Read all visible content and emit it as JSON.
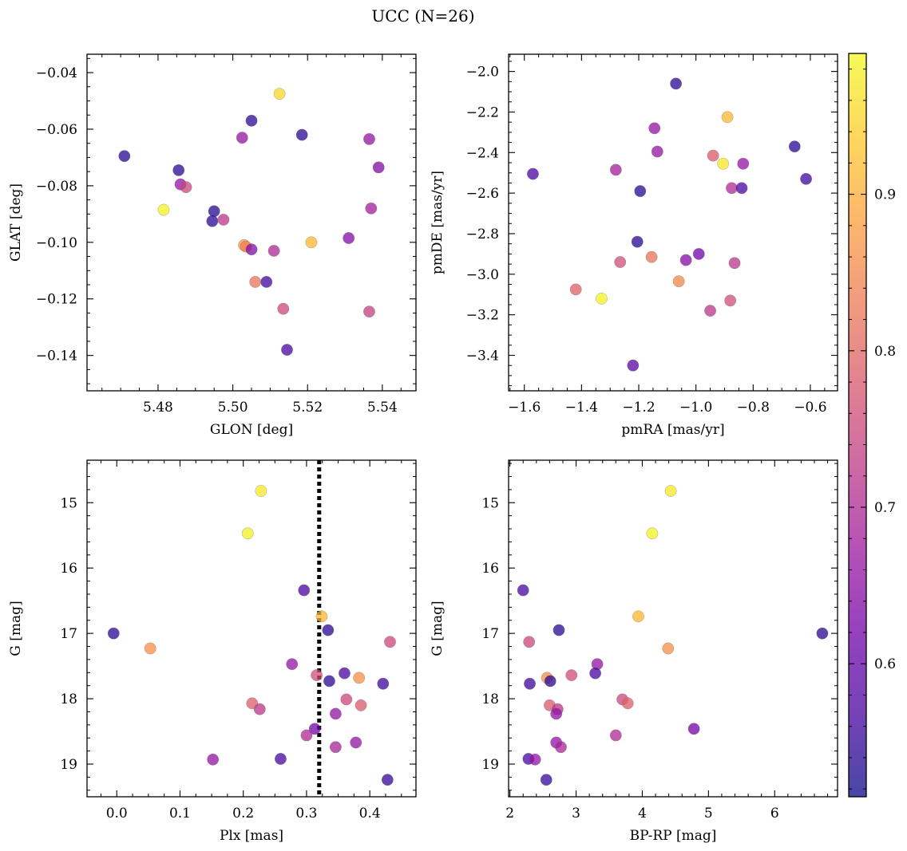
{
  "figure": {
    "title": "UCC (N=26)"
  },
  "colorbar": {
    "vmin": 0.515,
    "vmax": 0.99,
    "ticks": [
      0.6,
      0.7,
      0.8,
      0.9
    ],
    "tick_labels": [
      "0.6",
      "0.7",
      "0.8",
      "0.9"
    ],
    "colormap": "plasma",
    "colors": [
      "#0d0887",
      "#46039f",
      "#7201a8",
      "#9c179e",
      "#bd3786",
      "#d8576b",
      "#ed7953",
      "#fb9f3a",
      "#fdca26",
      "#f0f921"
    ],
    "alpha": 0.75
  },
  "dashed_line": {
    "panel": 2,
    "x": 0.32,
    "style": "dotted",
    "color": "#000000"
  },
  "chart_data": [
    {
      "type": "scatter",
      "xlabel": "GLON [deg]",
      "ylabel": "GLAT [deg]",
      "xlim": [
        5.461,
        5.549
      ],
      "ylim": [
        -0.1525,
        -0.0335
      ],
      "xticks": [
        5.48,
        5.5,
        5.52,
        5.54
      ],
      "xtick_labels": [
        "5.48",
        "5.50",
        "5.52",
        "5.54"
      ],
      "yticks": [
        -0.04,
        -0.06,
        -0.08,
        -0.1,
        -0.12,
        -0.14
      ],
      "ytick_labels": [
        "−0.04",
        "−0.06",
        "−0.08",
        "−0.10",
        "−0.12",
        "−0.14"
      ],
      "points": [
        {
          "x": 5.471,
          "y": -0.0695,
          "c": 0.54
        },
        {
          "x": 5.4855,
          "y": -0.0745,
          "c": 0.54
        },
        {
          "x": 5.486,
          "y": -0.0795,
          "c": 0.66
        },
        {
          "x": 5.4875,
          "y": -0.0805,
          "c": 0.75
        },
        {
          "x": 5.4815,
          "y": -0.0885,
          "c": 0.98
        },
        {
          "x": 5.4945,
          "y": -0.0925,
          "c": 0.54
        },
        {
          "x": 5.495,
          "y": -0.089,
          "c": 0.54
        },
        {
          "x": 5.4975,
          "y": -0.092,
          "c": 0.72
        },
        {
          "x": 5.5025,
          "y": -0.063,
          "c": 0.66
        },
        {
          "x": 5.505,
          "y": -0.057,
          "c": 0.54
        },
        {
          "x": 5.5125,
          "y": -0.0475,
          "c": 0.95
        },
        {
          "x": 5.5185,
          "y": -0.062,
          "c": 0.54
        },
        {
          "x": 5.503,
          "y": -0.101,
          "c": 0.87
        },
        {
          "x": 5.5035,
          "y": -0.1015,
          "c": 0.84
        },
        {
          "x": 5.505,
          "y": -0.1025,
          "c": 0.64
        },
        {
          "x": 5.506,
          "y": -0.114,
          "c": 0.82
        },
        {
          "x": 5.509,
          "y": -0.114,
          "c": 0.56
        },
        {
          "x": 5.511,
          "y": -0.103,
          "c": 0.7
        },
        {
          "x": 5.5135,
          "y": -0.1235,
          "c": 0.75
        },
        {
          "x": 5.5145,
          "y": -0.138,
          "c": 0.57
        },
        {
          "x": 5.521,
          "y": -0.1,
          "c": 0.91
        },
        {
          "x": 5.531,
          "y": -0.0985,
          "c": 0.64
        },
        {
          "x": 5.5365,
          "y": -0.0635,
          "c": 0.66
        },
        {
          "x": 5.537,
          "y": -0.088,
          "c": 0.68
        },
        {
          "x": 5.539,
          "y": -0.0735,
          "c": 0.64
        },
        {
          "x": 5.5365,
          "y": -0.1245,
          "c": 0.74
        }
      ]
    },
    {
      "type": "scatter",
      "xlabel": "pmRA [mas/yr]",
      "ylabel": "pmDE [mas/yr]",
      "xlim": [
        -1.655,
        -0.505
      ],
      "ylim": [
        -3.575,
        -1.915
      ],
      "xticks": [
        -1.6,
        -1.4,
        -1.2,
        -1.0,
        -0.8,
        -0.6
      ],
      "xtick_labels": [
        "−1.6",
        "−1.4",
        "−1.2",
        "−1.0",
        "−0.8",
        "−0.6"
      ],
      "yticks": [
        -2.0,
        -2.2,
        -2.4,
        -2.6,
        -2.8,
        -3.0,
        -3.2,
        -3.4
      ],
      "ytick_labels": [
        "−2.0",
        "−2.2",
        "−2.4",
        "−2.6",
        "−2.8",
        "−3.0",
        "−3.2",
        "−3.4"
      ],
      "points": [
        {
          "x": -1.57,
          "y": -2.505,
          "c": 0.57
        },
        {
          "x": -1.07,
          "y": -2.06,
          "c": 0.54
        },
        {
          "x": -1.145,
          "y": -2.28,
          "c": 0.66
        },
        {
          "x": -1.135,
          "y": -2.395,
          "c": 0.66
        },
        {
          "x": -1.28,
          "y": -2.485,
          "c": 0.68
        },
        {
          "x": -1.195,
          "y": -2.59,
          "c": 0.54
        },
        {
          "x": -0.89,
          "y": -2.225,
          "c": 0.91
        },
        {
          "x": -0.94,
          "y": -2.415,
          "c": 0.78
        },
        {
          "x": -0.905,
          "y": -2.455,
          "c": 0.97
        },
        {
          "x": -0.655,
          "y": -2.37,
          "c": 0.54
        },
        {
          "x": -0.835,
          "y": -2.455,
          "c": 0.66
        },
        {
          "x": -0.875,
          "y": -2.575,
          "c": 0.7
        },
        {
          "x": -0.84,
          "y": -2.575,
          "c": 0.57
        },
        {
          "x": -0.615,
          "y": -2.53,
          "c": 0.56
        },
        {
          "x": -1.205,
          "y": -2.84,
          "c": 0.54
        },
        {
          "x": -1.265,
          "y": -2.94,
          "c": 0.76
        },
        {
          "x": -1.155,
          "y": -2.915,
          "c": 0.82
        },
        {
          "x": -1.035,
          "y": -2.93,
          "c": 0.64
        },
        {
          "x": -0.99,
          "y": -2.9,
          "c": 0.62
        },
        {
          "x": -0.865,
          "y": -2.945,
          "c": 0.72
        },
        {
          "x": -1.42,
          "y": -3.075,
          "c": 0.79
        },
        {
          "x": -1.33,
          "y": -3.12,
          "c": 0.98
        },
        {
          "x": -1.06,
          "y": -3.035,
          "c": 0.85
        },
        {
          "x": -0.95,
          "y": -3.18,
          "c": 0.72
        },
        {
          "x": -0.88,
          "y": -3.13,
          "c": 0.76
        },
        {
          "x": -1.22,
          "y": -3.45,
          "c": 0.59
        }
      ]
    },
    {
      "type": "scatter",
      "xlabel": "Plx [mas]",
      "ylabel": "G [mag]",
      "xlim": [
        -0.047,
        0.473
      ],
      "ylim": [
        19.5,
        14.35
      ],
      "xticks": [
        0.0,
        0.1,
        0.2,
        0.3,
        0.4
      ],
      "xtick_labels": [
        "0.0",
        "0.1",
        "0.2",
        "0.3",
        "0.4"
      ],
      "yticks": [
        15,
        16,
        17,
        18,
        19
      ],
      "ytick_labels": [
        "15",
        "16",
        "17",
        "18",
        "19"
      ],
      "points": [
        {
          "x": 0.228,
          "y": 14.82,
          "c": 0.97
        },
        {
          "x": 0.207,
          "y": 15.47,
          "c": 0.98
        },
        {
          "x": -0.005,
          "y": 17.0,
          "c": 0.54
        },
        {
          "x": 0.053,
          "y": 17.23,
          "c": 0.86
        },
        {
          "x": 0.296,
          "y": 16.34,
          "c": 0.57
        },
        {
          "x": 0.324,
          "y": 16.74,
          "c": 0.91
        },
        {
          "x": 0.334,
          "y": 16.95,
          "c": 0.54
        },
        {
          "x": 0.277,
          "y": 17.47,
          "c": 0.66
        },
        {
          "x": 0.316,
          "y": 17.64,
          "c": 0.76
        },
        {
          "x": 0.336,
          "y": 17.73,
          "c": 0.54
        },
        {
          "x": 0.36,
          "y": 17.61,
          "c": 0.57
        },
        {
          "x": 0.383,
          "y": 17.68,
          "c": 0.86
        },
        {
          "x": 0.421,
          "y": 17.77,
          "c": 0.56
        },
        {
          "x": 0.432,
          "y": 17.13,
          "c": 0.75
        },
        {
          "x": 0.214,
          "y": 18.07,
          "c": 0.79
        },
        {
          "x": 0.226,
          "y": 18.16,
          "c": 0.72
        },
        {
          "x": 0.363,
          "y": 18.01,
          "c": 0.75
        },
        {
          "x": 0.386,
          "y": 18.1,
          "c": 0.78
        },
        {
          "x": 0.346,
          "y": 18.23,
          "c": 0.66
        },
        {
          "x": 0.313,
          "y": 18.46,
          "c": 0.62
        },
        {
          "x": 0.3,
          "y": 18.56,
          "c": 0.7
        },
        {
          "x": 0.346,
          "y": 18.74,
          "c": 0.69
        },
        {
          "x": 0.378,
          "y": 18.67,
          "c": 0.66
        },
        {
          "x": 0.152,
          "y": 18.93,
          "c": 0.66
        },
        {
          "x": 0.259,
          "y": 18.92,
          "c": 0.57
        },
        {
          "x": 0.428,
          "y": 19.24,
          "c": 0.55
        }
      ]
    },
    {
      "type": "scatter",
      "xlabel": "BP-RP [mag]",
      "ylabel": "G [mag]",
      "xlim": [
        1.98,
        6.95
      ],
      "ylim": [
        19.5,
        14.35
      ],
      "xticks": [
        2,
        3,
        4,
        5,
        6
      ],
      "xtick_labels": [
        "2",
        "3",
        "4",
        "5",
        "6"
      ],
      "yticks": [
        15,
        16,
        17,
        18,
        19
      ],
      "ytick_labels": [
        "15",
        "16",
        "17",
        "18",
        "19"
      ],
      "points": [
        {
          "x": 4.43,
          "y": 14.82,
          "c": 0.97
        },
        {
          "x": 4.15,
          "y": 15.47,
          "c": 0.98
        },
        {
          "x": 2.2,
          "y": 16.34,
          "c": 0.57
        },
        {
          "x": 2.29,
          "y": 17.13,
          "c": 0.75
        },
        {
          "x": 2.74,
          "y": 16.95,
          "c": 0.54
        },
        {
          "x": 3.94,
          "y": 16.74,
          "c": 0.91
        },
        {
          "x": 6.72,
          "y": 17.0,
          "c": 0.54
        },
        {
          "x": 4.39,
          "y": 17.23,
          "c": 0.86
        },
        {
          "x": 3.32,
          "y": 17.47,
          "c": 0.66
        },
        {
          "x": 3.29,
          "y": 17.61,
          "c": 0.57
        },
        {
          "x": 2.93,
          "y": 17.64,
          "c": 0.76
        },
        {
          "x": 2.56,
          "y": 17.68,
          "c": 0.86
        },
        {
          "x": 2.61,
          "y": 17.73,
          "c": 0.54
        },
        {
          "x": 2.3,
          "y": 17.77,
          "c": 0.56
        },
        {
          "x": 2.6,
          "y": 18.1,
          "c": 0.78
        },
        {
          "x": 2.72,
          "y": 18.16,
          "c": 0.72
        },
        {
          "x": 2.7,
          "y": 18.23,
          "c": 0.66
        },
        {
          "x": 3.7,
          "y": 18.01,
          "c": 0.75
        },
        {
          "x": 3.78,
          "y": 18.07,
          "c": 0.79
        },
        {
          "x": 4.78,
          "y": 18.46,
          "c": 0.62
        },
        {
          "x": 3.6,
          "y": 18.56,
          "c": 0.7
        },
        {
          "x": 2.7,
          "y": 18.67,
          "c": 0.66
        },
        {
          "x": 2.77,
          "y": 18.74,
          "c": 0.69
        },
        {
          "x": 2.28,
          "y": 18.92,
          "c": 0.57
        },
        {
          "x": 2.38,
          "y": 18.93,
          "c": 0.66
        },
        {
          "x": 2.55,
          "y": 19.24,
          "c": 0.55
        }
      ]
    }
  ]
}
